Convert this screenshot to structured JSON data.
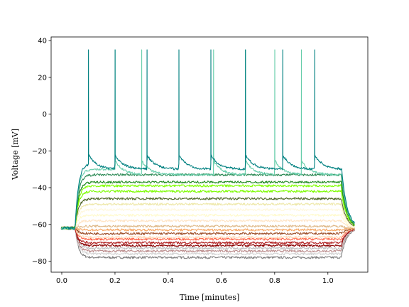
{
  "chart_data": {
    "type": "line",
    "xlabel": "Time [minutes]",
    "ylabel": "Voltage [mV]",
    "xlim": [
      -0.04,
      1.15
    ],
    "ylim": [
      -86,
      42
    ],
    "xticks": [
      0.0,
      0.2,
      0.4,
      0.6,
      0.8,
      1.0
    ],
    "xtick_labels": [
      "0.0",
      "0.2",
      "0.4",
      "0.6",
      "0.8",
      "1.0"
    ],
    "yticks": [
      -80,
      -60,
      -40,
      -20,
      0,
      20,
      40
    ],
    "ytick_labels": [
      "−80",
      "−60",
      "−40",
      "−20",
      "0",
      "20",
      "40"
    ],
    "grid": false,
    "stimulus": {
      "onset": 0.05,
      "offset": 1.05,
      "baseline": -62,
      "end": 1.1
    },
    "series": [
      {
        "color": "#808080",
        "level": -78
      },
      {
        "color": "#d3d3d3",
        "level": -76
      },
      {
        "color": "#bc8f8f",
        "level": -74.5
      },
      {
        "color": "#c0c0c0",
        "level": -73
      },
      {
        "color": "#8b0000",
        "level": -71.5
      },
      {
        "color": "#b22222",
        "level": -70
      },
      {
        "color": "#ff6347",
        "level": -68
      },
      {
        "color": "#ffdab9",
        "level": -67
      },
      {
        "color": "#a0522d",
        "level": -65
      },
      {
        "color": "#f4a460",
        "level": -63
      },
      {
        "color": "#deb887",
        "level": -61
      },
      {
        "color": "#ffe4c4",
        "level": -58
      },
      {
        "color": "#fffacd",
        "level": -55
      },
      {
        "color": "#fff8dc",
        "level": -52
      },
      {
        "color": "#eee8aa",
        "level": -49
      },
      {
        "color": "#556b2f",
        "level": -46
      },
      {
        "color": "#7cfc00",
        "level": -42
      },
      {
        "color": "#7fff00",
        "level": -39
      },
      {
        "color": "#228b22",
        "level": -37
      },
      {
        "color": "#2e8b57",
        "level": -33
      },
      {
        "color": "#66cdaa",
        "level": -30,
        "spikes": [
          0.2,
          0.3,
          0.57,
          0.69,
          0.8,
          0.9
        ]
      },
      {
        "color": "#008080",
        "level": -27,
        "spikes": [
          0.1,
          0.2,
          0.32,
          0.44,
          0.56,
          0.69,
          0.83,
          0.95
        ]
      }
    ]
  }
}
